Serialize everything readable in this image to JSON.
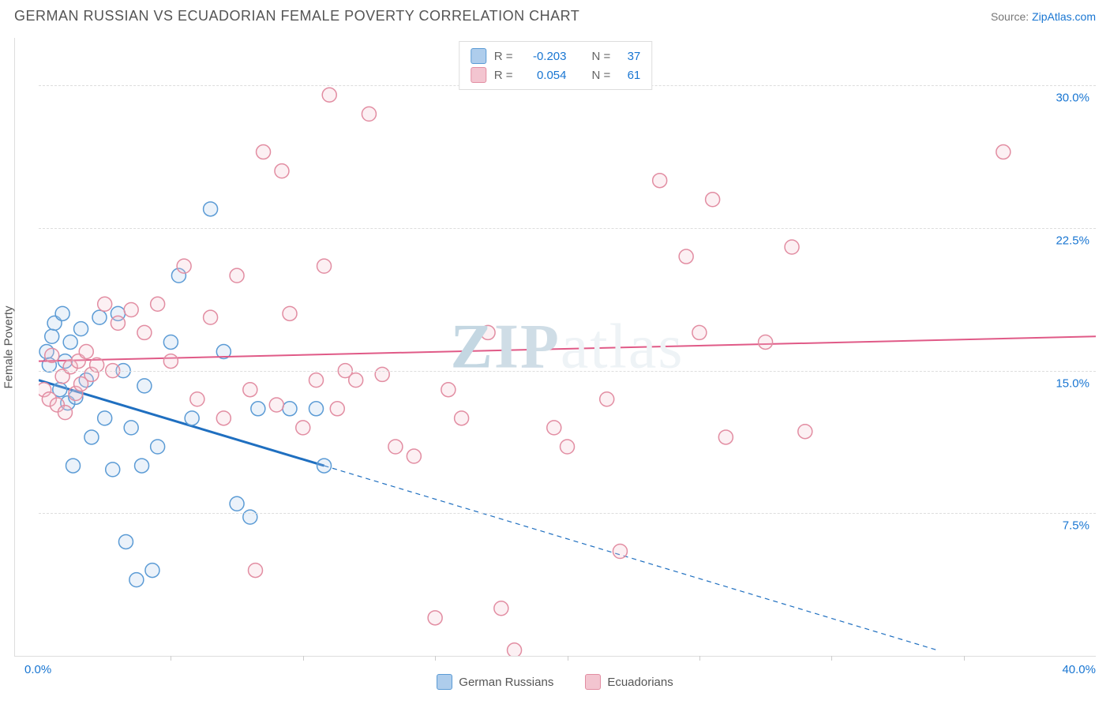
{
  "title": "GERMAN RUSSIAN VS ECUADORIAN FEMALE POVERTY CORRELATION CHART",
  "source_prefix": "Source: ",
  "source_name": "ZipAtlas.com",
  "ylabel": "Female Poverty",
  "watermark": {
    "zip": "ZIP",
    "atlas": "atlas"
  },
  "chart": {
    "type": "scatter",
    "xlim": [
      0,
      40
    ],
    "ylim": [
      0,
      32.5
    ],
    "x_ticks": [
      0,
      40
    ],
    "x_tick_labels": [
      "0.0%",
      "40.0%"
    ],
    "x_minor_ticks": [
      5,
      10,
      15,
      20,
      25,
      30,
      35
    ],
    "y_ticks": [
      7.5,
      15.0,
      22.5,
      30.0
    ],
    "y_tick_labels": [
      "7.5%",
      "15.0%",
      "22.5%",
      "30.0%"
    ],
    "grid_color": "#dddddd",
    "background_color": "#ffffff",
    "marker_radius": 9,
    "marker_stroke_width": 1.5,
    "marker_fill_opacity": 0.25,
    "series": [
      {
        "name": "German Russians",
        "stroke": "#5b9bd5",
        "fill": "#aecdec",
        "r_label": "R =",
        "r_value": "-0.203",
        "n_label": "N =",
        "n_value": "37",
        "points": [
          [
            0.3,
            16.0
          ],
          [
            0.5,
            16.8
          ],
          [
            0.4,
            15.3
          ],
          [
            0.6,
            17.5
          ],
          [
            0.8,
            14.0
          ],
          [
            0.9,
            18.0
          ],
          [
            1.0,
            15.5
          ],
          [
            1.1,
            13.3
          ],
          [
            1.2,
            16.5
          ],
          [
            1.4,
            13.6
          ],
          [
            1.3,
            10.0
          ],
          [
            1.6,
            17.2
          ],
          [
            1.8,
            14.5
          ],
          [
            2.0,
            11.5
          ],
          [
            2.3,
            17.8
          ],
          [
            2.5,
            12.5
          ],
          [
            2.8,
            9.8
          ],
          [
            3.0,
            18.0
          ],
          [
            3.2,
            15.0
          ],
          [
            3.3,
            6.0
          ],
          [
            3.5,
            12.0
          ],
          [
            3.7,
            4.0
          ],
          [
            3.9,
            10.0
          ],
          [
            4.0,
            14.2
          ],
          [
            4.3,
            4.5
          ],
          [
            4.5,
            11.0
          ],
          [
            5.0,
            16.5
          ],
          [
            5.3,
            20.0
          ],
          [
            5.8,
            12.5
          ],
          [
            6.5,
            23.5
          ],
          [
            7.0,
            16.0
          ],
          [
            7.5,
            8.0
          ],
          [
            8.0,
            7.3
          ],
          [
            8.3,
            13.0
          ],
          [
            9.5,
            13.0
          ],
          [
            10.5,
            13.0
          ],
          [
            10.8,
            10.0
          ]
        ],
        "trend": {
          "x1": 0,
          "y1": 14.5,
          "x2_solid": 10.8,
          "y2_solid": 10.0,
          "x2": 34,
          "y2": 0.3,
          "color": "#1f6fc0",
          "width": 3
        }
      },
      {
        "name": "Ecuadorians",
        "stroke": "#e28da2",
        "fill": "#f3c5d0",
        "r_label": "R =",
        "r_value": "0.054",
        "n_label": "N =",
        "n_value": "61",
        "points": [
          [
            0.2,
            14.0
          ],
          [
            0.4,
            13.5
          ],
          [
            0.5,
            15.8
          ],
          [
            0.7,
            13.2
          ],
          [
            0.9,
            14.7
          ],
          [
            1.0,
            12.8
          ],
          [
            1.2,
            15.2
          ],
          [
            1.4,
            13.8
          ],
          [
            1.5,
            15.5
          ],
          [
            1.6,
            14.3
          ],
          [
            1.8,
            16.0
          ],
          [
            2.0,
            14.8
          ],
          [
            2.2,
            15.3
          ],
          [
            2.5,
            18.5
          ],
          [
            2.8,
            15.0
          ],
          [
            3.0,
            17.5
          ],
          [
            3.5,
            18.2
          ],
          [
            4.0,
            17.0
          ],
          [
            4.5,
            18.5
          ],
          [
            5.0,
            15.5
          ],
          [
            5.5,
            20.5
          ],
          [
            6.0,
            13.5
          ],
          [
            6.5,
            17.8
          ],
          [
            7.0,
            12.5
          ],
          [
            7.5,
            20.0
          ],
          [
            8.0,
            14.0
          ],
          [
            8.2,
            4.5
          ],
          [
            8.5,
            26.5
          ],
          [
            9.0,
            13.2
          ],
          [
            9.2,
            25.5
          ],
          [
            9.5,
            18.0
          ],
          [
            10.0,
            12.0
          ],
          [
            10.5,
            14.5
          ],
          [
            10.8,
            20.5
          ],
          [
            11.0,
            29.5
          ],
          [
            11.3,
            13.0
          ],
          [
            11.6,
            15.0
          ],
          [
            12.0,
            14.5
          ],
          [
            12.5,
            28.5
          ],
          [
            13.0,
            14.8
          ],
          [
            13.5,
            11.0
          ],
          [
            14.2,
            10.5
          ],
          [
            15.0,
            2.0
          ],
          [
            15.5,
            14.0
          ],
          [
            16.0,
            12.5
          ],
          [
            17.0,
            17.0
          ],
          [
            17.5,
            2.5
          ],
          [
            18.0,
            0.3
          ],
          [
            19.5,
            12.0
          ],
          [
            20.0,
            11.0
          ],
          [
            21.5,
            13.5
          ],
          [
            22.0,
            5.5
          ],
          [
            23.5,
            25.0
          ],
          [
            24.5,
            21.0
          ],
          [
            25.0,
            17.0
          ],
          [
            25.5,
            24.0
          ],
          [
            26.0,
            11.5
          ],
          [
            27.5,
            16.5
          ],
          [
            28.5,
            21.5
          ],
          [
            29.0,
            11.8
          ],
          [
            36.5,
            26.5
          ]
        ],
        "trend": {
          "x1": 0,
          "y1": 15.5,
          "x2_solid": 40,
          "y2_solid": 16.8,
          "x2": 40,
          "y2": 16.8,
          "color": "#e05a87",
          "width": 2
        }
      }
    ]
  },
  "bottom_legend": [
    {
      "label": "German Russians",
      "stroke": "#5b9bd5",
      "fill": "#aecdec"
    },
    {
      "label": "Ecuadorians",
      "stroke": "#e28da2",
      "fill": "#f3c5d0"
    }
  ]
}
